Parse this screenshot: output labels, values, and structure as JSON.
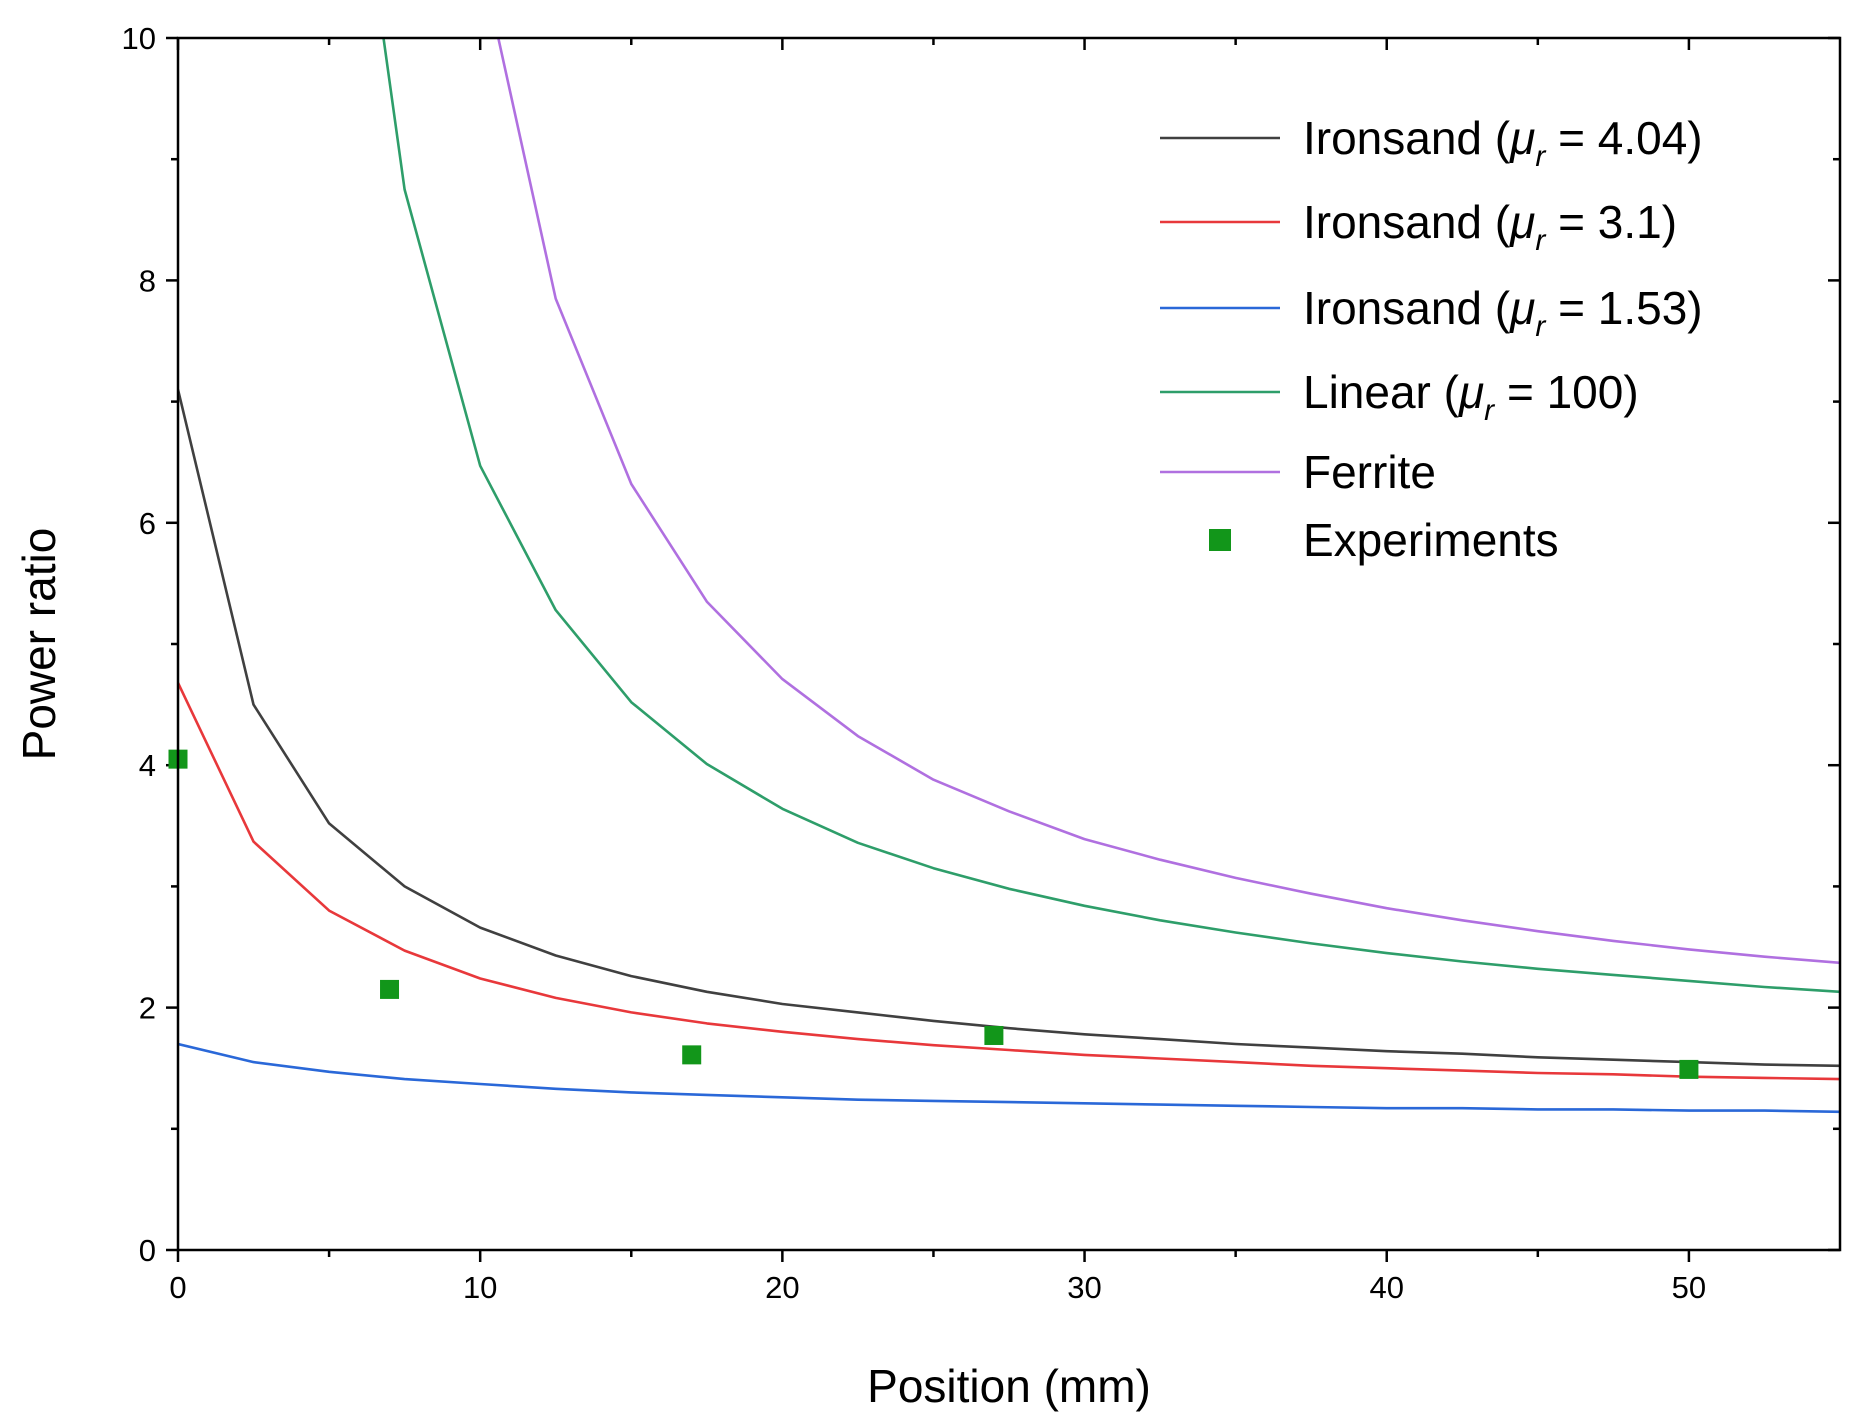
{
  "chart_data": {
    "type": "line",
    "title": "",
    "xlabel": "Position (mm)",
    "ylabel": "Power ratio",
    "xlim": [
      0,
      55
    ],
    "ylim": [
      0,
      10
    ],
    "xticks": [
      0,
      10,
      20,
      30,
      40,
      50
    ],
    "yticks": [
      0,
      2,
      4,
      6,
      8,
      10
    ],
    "xtick_labels": [
      "0",
      "10",
      "20",
      "30",
      "40",
      "50"
    ],
    "ytick_labels": [
      "0",
      "2",
      "4",
      "6",
      "8",
      "10"
    ],
    "legend_position": "top-right",
    "series": [
      {
        "name": "Ironsand (μr = 4.04)",
        "legend_prefix": "Ironsand (",
        "legend_symbol": "μ",
        "legend_sub": "r",
        "legend_suffix": " = 4.04)",
        "color": "#404040",
        "kind": "line",
        "x": [
          0,
          2.5,
          5,
          7.5,
          10,
          12.5,
          15,
          17.5,
          20,
          22.5,
          25,
          27.5,
          30,
          32.5,
          35,
          37.5,
          40,
          42.5,
          45,
          47.5,
          50,
          52.5,
          55
        ],
        "y": [
          7.1,
          4.5,
          3.52,
          3.0,
          2.66,
          2.43,
          2.26,
          2.13,
          2.03,
          1.96,
          1.89,
          1.83,
          1.78,
          1.74,
          1.7,
          1.67,
          1.64,
          1.62,
          1.59,
          1.57,
          1.55,
          1.53,
          1.52
        ]
      },
      {
        "name": "Ironsand (μr = 3.1)",
        "legend_prefix": "Ironsand (",
        "legend_symbol": "μ",
        "legend_sub": "r",
        "legend_suffix": " = 3.1)",
        "color": "#e8383b",
        "kind": "line",
        "x": [
          0,
          2.5,
          5,
          7.5,
          10,
          12.5,
          15,
          17.5,
          20,
          22.5,
          25,
          27.5,
          30,
          32.5,
          35,
          37.5,
          40,
          42.5,
          45,
          47.5,
          50,
          52.5,
          55
        ],
        "y": [
          4.68,
          3.37,
          2.8,
          2.47,
          2.24,
          2.08,
          1.96,
          1.87,
          1.8,
          1.74,
          1.69,
          1.65,
          1.61,
          1.58,
          1.55,
          1.52,
          1.5,
          1.48,
          1.46,
          1.45,
          1.43,
          1.42,
          1.41
        ]
      },
      {
        "name": "Ironsand (μr = 1.53)",
        "legend_prefix": "Ironsand (",
        "legend_symbol": "μ",
        "legend_sub": "r",
        "legend_suffix": " = 1.53)",
        "color": "#2a68d8",
        "kind": "line",
        "x": [
          0,
          2.5,
          5,
          7.5,
          10,
          12.5,
          15,
          17.5,
          20,
          22.5,
          25,
          27.5,
          30,
          32.5,
          35,
          37.5,
          40,
          42.5,
          45,
          47.5,
          50,
          52.5,
          55
        ],
        "y": [
          1.7,
          1.55,
          1.47,
          1.41,
          1.37,
          1.33,
          1.3,
          1.28,
          1.26,
          1.24,
          1.23,
          1.22,
          1.21,
          1.2,
          1.19,
          1.18,
          1.17,
          1.17,
          1.16,
          1.16,
          1.15,
          1.15,
          1.14
        ]
      },
      {
        "name": "Linear (μr = 100)",
        "legend_prefix": "Linear (",
        "legend_symbol": "μ",
        "legend_sub": "r",
        "legend_suffix": " = 100)",
        "color": "#2e9e6a",
        "kind": "line",
        "x": [
          6.8,
          7.5,
          10,
          12.5,
          15,
          17.5,
          20,
          22.5,
          25,
          27.5,
          30,
          32.5,
          35,
          37.5,
          40,
          42.5,
          45,
          47.5,
          50,
          52.5,
          55
        ],
        "y": [
          10.0,
          8.75,
          6.47,
          5.28,
          4.52,
          4.01,
          3.64,
          3.36,
          3.15,
          2.98,
          2.84,
          2.72,
          2.62,
          2.53,
          2.45,
          2.38,
          2.32,
          2.27,
          2.22,
          2.17,
          2.13
        ]
      },
      {
        "name": "Ferrite",
        "legend_prefix": "Ferrite",
        "legend_symbol": "",
        "legend_sub": "",
        "legend_suffix": "",
        "color": "#b070e0",
        "kind": "line",
        "x": [
          10.6,
          12.5,
          15,
          17.5,
          20,
          22.5,
          25,
          27.5,
          30,
          32.5,
          35,
          37.5,
          40,
          42.5,
          45,
          47.5,
          50,
          52.5,
          55
        ],
        "y": [
          10.0,
          7.85,
          6.32,
          5.35,
          4.71,
          4.24,
          3.88,
          3.62,
          3.39,
          3.22,
          3.07,
          2.94,
          2.82,
          2.72,
          2.63,
          2.55,
          2.48,
          2.42,
          2.37
        ]
      },
      {
        "name": "Experiments",
        "legend_prefix": "Experiments",
        "legend_symbol": "",
        "legend_sub": "",
        "legend_suffix": "",
        "color": "#12961a",
        "kind": "scatter",
        "x": [
          0,
          7,
          17,
          27,
          50
        ],
        "y": [
          4.05,
          2.15,
          1.61,
          1.77,
          1.49
        ]
      }
    ]
  }
}
